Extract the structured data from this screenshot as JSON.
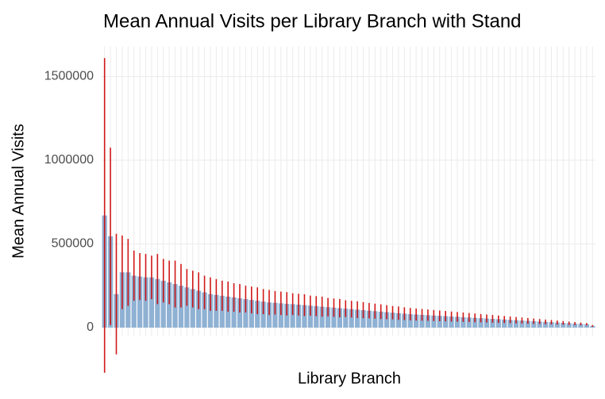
{
  "chart_data": {
    "type": "bar",
    "title": "Mean Annual Visits per Library Branch with Stand",
    "x_label": "Library Branch",
    "y_label": "Mean Annual Visits",
    "categories": [
      null,
      null,
      null,
      null,
      null,
      null,
      null,
      null,
      null,
      null,
      null,
      null,
      null,
      null,
      null,
      null,
      null,
      null,
      null,
      null,
      null,
      null,
      null,
      null,
      null,
      null,
      null,
      null,
      null,
      null,
      null,
      null,
      null,
      null,
      null,
      null,
      null,
      null,
      null,
      null,
      null,
      null,
      null,
      null,
      null,
      null,
      null,
      null,
      null,
      null,
      null,
      null,
      null,
      null,
      null,
      null,
      null,
      null,
      null,
      null,
      null,
      null,
      null,
      null,
      null,
      null,
      null,
      null,
      null,
      null,
      null,
      null,
      null,
      null,
      null,
      null,
      null,
      null,
      null,
      null,
      null,
      null,
      null,
      null
    ],
    "values": [
      670000,
      545000,
      200000,
      330000,
      330000,
      310000,
      305000,
      300000,
      300000,
      290000,
      280000,
      270000,
      260000,
      250000,
      240000,
      230000,
      220000,
      210000,
      200000,
      195000,
      190000,
      185000,
      180000,
      175000,
      170000,
      165000,
      160000,
      155000,
      150000,
      148000,
      145000,
      142000,
      140000,
      137000,
      134000,
      131000,
      128000,
      125000,
      122000,
      119000,
      116000,
      113000,
      110000,
      107000,
      104000,
      101000,
      98000,
      95000,
      92000,
      89000,
      86000,
      83000,
      80000,
      78000,
      76000,
      74000,
      72000,
      70000,
      68000,
      66000,
      64000,
      62000,
      60000,
      58000,
      56000,
      54000,
      52000,
      50000,
      48000,
      46000,
      44000,
      42000,
      40000,
      38000,
      36000,
      34000,
      32000,
      30000,
      28000,
      26000,
      24000,
      22000,
      20000,
      10000
    ],
    "errors": [
      940000,
      530000,
      360000,
      220000,
      200000,
      150000,
      140000,
      140000,
      130000,
      150000,
      130000,
      130000,
      140000,
      130000,
      110000,
      110000,
      110000,
      100000,
      100000,
      95000,
      90000,
      90000,
      85000,
      85000,
      80000,
      80000,
      80000,
      75000,
      75000,
      70000,
      70000,
      70000,
      65000,
      65000,
      65000,
      60000,
      60000,
      60000,
      55000,
      55000,
      55000,
      50000,
      50000,
      50000,
      48000,
      46000,
      45000,
      44000,
      42000,
      40000,
      40000,
      38000,
      37000,
      36000,
      35000,
      34000,
      33000,
      32000,
      31000,
      30000,
      29000,
      28000,
      27000,
      26000,
      25000,
      24000,
      23000,
      22000,
      21000,
      20000,
      19000,
      18000,
      17000,
      16000,
      15000,
      14000,
      13000,
      12000,
      11000,
      10000,
      9000,
      8000,
      7000,
      5000
    ],
    "color": "#8fb1d3",
    "error_color": "#cc0000",
    "ylim": [
      -50000,
      1680000
    ],
    "yticks": [
      0,
      500000,
      1000000,
      1500000
    ],
    "grid": true
  }
}
